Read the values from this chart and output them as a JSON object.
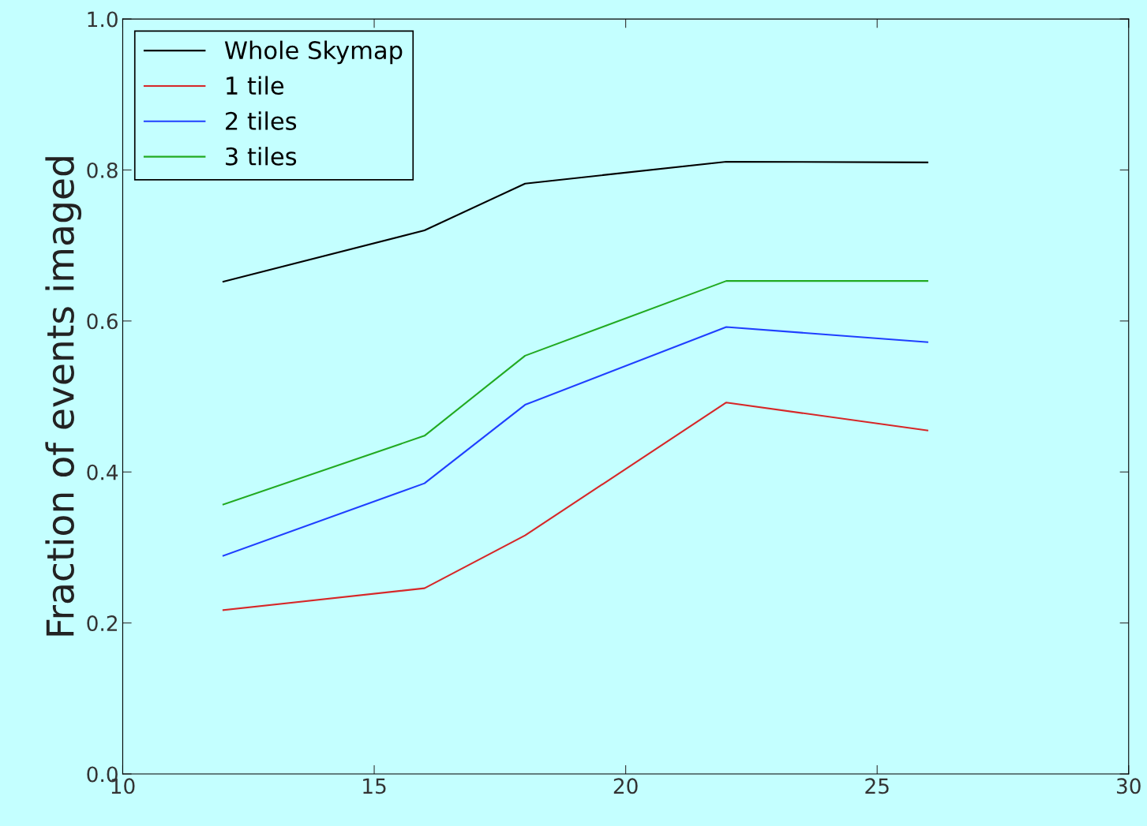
{
  "chart_data": {
    "type": "line",
    "ylabel": "Fraction of events imaged",
    "x": [
      12,
      16,
      18,
      22,
      26
    ],
    "xlim": [
      10,
      30
    ],
    "xticks": [
      10,
      15,
      20,
      25,
      30
    ],
    "ylim": [
      0,
      1
    ],
    "yticks": [
      {
        "value": 0,
        "label": "0.0"
      },
      {
        "value": 0.2,
        "label": "0.2"
      },
      {
        "value": 0.4,
        "label": "0.4"
      },
      {
        "value": 0.6,
        "label": "0.6"
      },
      {
        "value": 0.8,
        "label": "0.8"
      },
      {
        "value": 1,
        "label": "1.0"
      }
    ],
    "legend": "top left",
    "grid": false,
    "series": [
      {
        "name": "Whole Skymap",
        "color": "#000000",
        "values": [
          0.652,
          0.72,
          0.782,
          0.811,
          0.81
        ]
      },
      {
        "name": "1 tile",
        "color": "#d62728",
        "values": [
          0.217,
          0.246,
          0.316,
          0.492,
          0.455
        ]
      },
      {
        "name": "2 tiles",
        "color": "#1f3fff",
        "values": [
          0.289,
          0.385,
          0.489,
          0.592,
          0.572
        ]
      },
      {
        "name": "3 tiles",
        "color": "#22aa22",
        "values": [
          0.357,
          0.448,
          0.554,
          0.653,
          0.653
        ]
      }
    ]
  }
}
